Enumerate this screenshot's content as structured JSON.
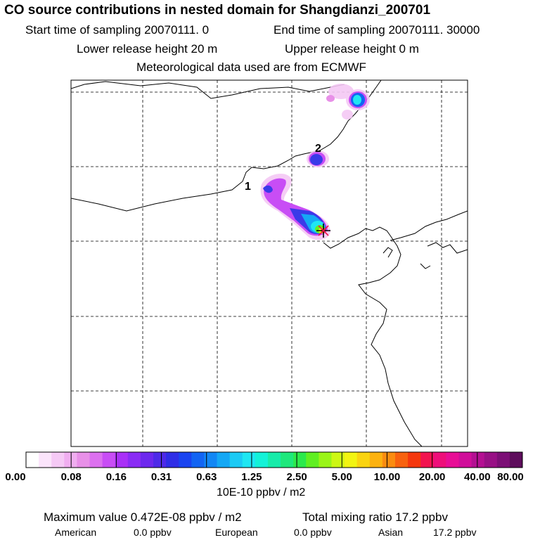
{
  "header": {
    "title": "CO  source contributions in nested domain for Shangdianzi_200701",
    "start_time": "Start time of sampling 20070111.     0",
    "end_time": "End time of sampling 20070111. 30000",
    "lower_height": "Lower release height   20 m",
    "upper_height": "Upper release height    0 m",
    "met_data": "Meteorological data used are from ECMWF"
  },
  "map": {
    "labels": [
      {
        "id": "label-1",
        "text": "1"
      },
      {
        "id": "label-2",
        "text": "2"
      }
    ],
    "release_marker": "star-icon"
  },
  "colorbar": {
    "colors": [
      "#ffffff",
      "#fbe4fb",
      "#f5c9f5",
      "#f0aef0",
      "#e890e8",
      "#dc70ef",
      "#c84df5",
      "#a930f7",
      "#8a2cf5",
      "#6d28ee",
      "#4e2ae8",
      "#2f2ee6",
      "#1a44f0",
      "#1264f3",
      "#1287f5",
      "#15a8f5",
      "#1ccaf5",
      "#1fe6f2",
      "#14f2d8",
      "#18ecaa",
      "#1ee87c",
      "#2bea4c",
      "#60ef22",
      "#9af518",
      "#cdf714",
      "#f2f412",
      "#fad411",
      "#fcb210",
      "#fb8c10",
      "#f8620f",
      "#f5380e",
      "#f2134f",
      "#ee0f7a",
      "#e80e96",
      "#d00e9a",
      "#b40f92",
      "#981085",
      "#7c0f76",
      "#5e0d5c"
    ],
    "tick_labels": [
      "0.00",
      "0.08",
      "0.16",
      "0.31",
      "0.63",
      "1.25",
      "2.50",
      "5.00",
      "10.00",
      "20.00",
      "40.00",
      "80.00"
    ],
    "units": "10E-10 ppbv / m2"
  },
  "summary": {
    "max_value": "Maximum value  0.472E-08 ppbv / m2",
    "total": "Total mixing ratio      17.2 ppbv",
    "american_label": "American",
    "american_value": "0.0 ppbv",
    "european_label": "European",
    "european_value": "0.0 ppbv",
    "asian_label": "Asian",
    "asian_value": "17.2 ppbv"
  }
}
